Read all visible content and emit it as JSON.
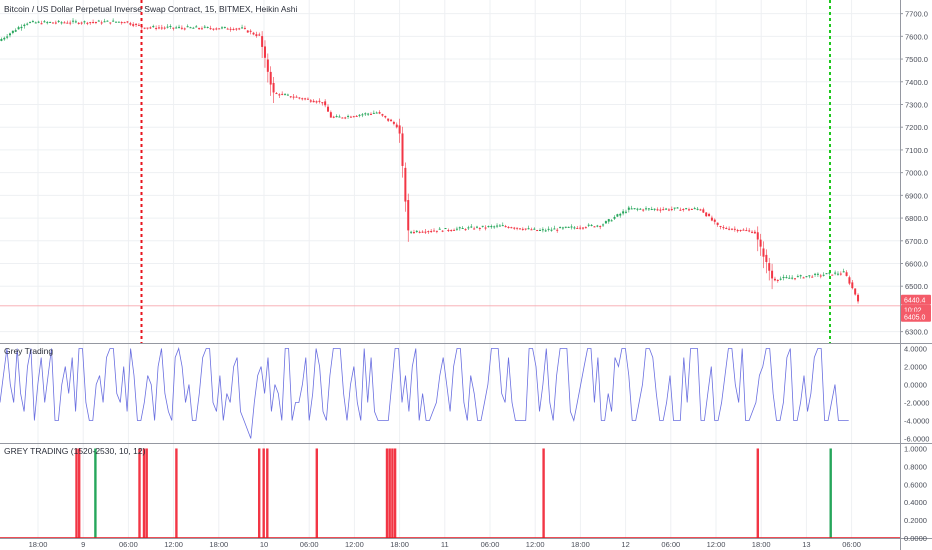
{
  "header": {
    "title": "Bitcoin / US Dollar Perpetual Inverse Swap Contract, 15, BITMEX, Heikin Ashi"
  },
  "colors": {
    "up": "#26a65b",
    "down": "#f23645",
    "oscillator_line": "#6a6fe0",
    "vline_red": "#e8141e",
    "vline_green": "#1ec81e",
    "grid": "#eef0f3",
    "axis_text": "#4a4e59",
    "price_tag": "#f45b69"
  },
  "price_axis": {
    "ticks": [
      "7700.0",
      "7600.0",
      "7500.0",
      "7400.0",
      "7300.0",
      "7200.0",
      "7100.0",
      "7000.0",
      "6900.0",
      "6800.0",
      "6700.0",
      "6600.0",
      "6500.0",
      "6300.0"
    ],
    "tags": [
      "6440.4",
      "10:02",
      "6405.0"
    ]
  },
  "osc_axis": {
    "ticks": [
      "4.0000",
      "2.0000",
      "0.0000",
      "-2.0000",
      "-4.0000",
      "-6.0000"
    ]
  },
  "signal_axis": {
    "ticks": [
      "1.0000",
      "0.8000",
      "0.6000",
      "0.4000",
      "0.2000",
      "0.0000"
    ]
  },
  "time_axis": {
    "labels": [
      "18:00",
      "9",
      "06:00",
      "12:00",
      "18:00",
      "10",
      "06:00",
      "12:00",
      "18:00",
      "11",
      "06:00",
      "12:00",
      "18:00",
      "12",
      "06:00",
      "12:00",
      "18:00",
      "13",
      "06:00"
    ]
  },
  "panels": {
    "oscillator_title": "Grey Trading",
    "signal_title": "GREY TRADING (1520-2530, 10, 12)"
  },
  "chart_data": [
    {
      "type": "candlestick",
      "title": "Bitcoin / US Dollar Perpetual Inverse Swap Contract, 15, BITMEX, Heikin Ashi",
      "ylim": [
        6250,
        7760
      ],
      "grid": true,
      "price_path": [
        [
          0,
          7580
        ],
        [
          0.03,
          7660
        ],
        [
          0.14,
          7665
        ],
        [
          0.16,
          7640
        ],
        [
          0.27,
          7635
        ],
        [
          0.29,
          7600
        ],
        [
          0.305,
          7350
        ],
        [
          0.36,
          7310
        ],
        [
          0.37,
          7240
        ],
        [
          0.42,
          7265
        ],
        [
          0.445,
          7200
        ],
        [
          0.455,
          6740
        ],
        [
          0.5,
          6750
        ],
        [
          0.56,
          6765
        ],
        [
          0.6,
          6745
        ],
        [
          0.67,
          6770
        ],
        [
          0.7,
          6840
        ],
        [
          0.78,
          6840
        ],
        [
          0.8,
          6760
        ],
        [
          0.84,
          6740
        ],
        [
          0.86,
          6530
        ],
        [
          0.94,
          6560
        ],
        [
          0.955,
          6440
        ]
      ],
      "vertical_markers": [
        {
          "position": 0.155,
          "color": "red"
        },
        {
          "position": 0.92,
          "color": "green"
        }
      ],
      "last_price": 6440.4,
      "ask_price": 6405.0
    },
    {
      "type": "line",
      "title": "Grey Trading",
      "ylim": [
        -6.5,
        4.5
      ],
      "values": [
        -2,
        1,
        4,
        0,
        -2,
        4,
        -1,
        -3,
        2,
        4,
        -4,
        0,
        3,
        -2,
        1,
        4,
        -4,
        -4,
        0,
        2,
        -1,
        3,
        -3,
        4,
        4,
        -2,
        -4,
        -4,
        0,
        1,
        -2,
        3,
        4,
        4,
        -1,
        -2,
        2,
        -3,
        4,
        1,
        -4,
        -4,
        -2,
        1,
        0,
        -4,
        2,
        4,
        -1,
        -3,
        -4,
        3,
        4,
        2,
        -2,
        0,
        -4,
        -4,
        -1,
        3,
        4,
        4,
        -2,
        -3,
        1,
        -4,
        -1,
        -2,
        2,
        3,
        -3,
        -4,
        -5,
        -6,
        -2,
        1,
        2,
        -1,
        3,
        -3,
        0,
        -1,
        -4,
        4,
        4,
        -4,
        -2,
        -2,
        0,
        3,
        -4,
        -1,
        4,
        2,
        -3,
        -4,
        1,
        4,
        4,
        4,
        -1,
        -4,
        0,
        2,
        -2,
        -4,
        4,
        -2,
        3,
        -3,
        -4,
        -4,
        -4,
        -4,
        0,
        4,
        4,
        -2,
        1,
        -3,
        2,
        4,
        -4,
        -1,
        -4,
        -4,
        -3,
        -2,
        1,
        3,
        0,
        -3,
        2,
        4,
        4,
        -2,
        -4,
        1,
        -1,
        -4,
        -4,
        -2,
        0,
        4,
        4,
        4,
        -1,
        -2,
        3,
        -2,
        -4,
        -4,
        -4,
        -4,
        4,
        4,
        2,
        -3,
        0,
        4,
        -2,
        -4,
        1,
        4,
        4,
        4,
        -3,
        -4,
        -2,
        0,
        2,
        4,
        4,
        -2,
        3,
        -4,
        -4,
        -1,
        -3,
        3,
        2,
        4,
        4,
        1,
        -4,
        -4,
        -2,
        0,
        4,
        4,
        3,
        -1,
        -4,
        -4,
        -2,
        1,
        -4,
        -4,
        -4,
        3,
        -2,
        4,
        4,
        4,
        -4,
        -4,
        -1,
        2,
        -4,
        -4,
        -2,
        1,
        4,
        4,
        0,
        -2,
        4,
        -4,
        -4,
        -3,
        -2,
        1,
        2,
        4,
        4,
        -1,
        -4,
        -4,
        -2,
        3,
        4,
        -4,
        -4,
        -2,
        1,
        -3,
        -1,
        3,
        4,
        4,
        -4,
        -4,
        -2,
        0,
        -4,
        -4,
        -4,
        -4
      ]
    },
    {
      "type": "bar",
      "title": "GREY TRADING (1520-2530, 10, 12)",
      "ylim": [
        0,
        1.05
      ],
      "signals": [
        {
          "position": 0.085,
          "color": "red",
          "value": 1
        },
        {
          "position": 0.088,
          "color": "red",
          "value": 1
        },
        {
          "position": 0.106,
          "color": "green",
          "value": 1
        },
        {
          "position": 0.155,
          "color": "red",
          "value": 1
        },
        {
          "position": 0.16,
          "color": "red",
          "value": 1
        },
        {
          "position": 0.163,
          "color": "red",
          "value": 1
        },
        {
          "position": 0.196,
          "color": "red",
          "value": 1
        },
        {
          "position": 0.288,
          "color": "red",
          "value": 1
        },
        {
          "position": 0.293,
          "color": "red",
          "value": 1
        },
        {
          "position": 0.297,
          "color": "red",
          "value": 1
        },
        {
          "position": 0.352,
          "color": "red",
          "value": 1
        },
        {
          "position": 0.43,
          "color": "red",
          "value": 1
        },
        {
          "position": 0.433,
          "color": "red",
          "value": 1
        },
        {
          "position": 0.436,
          "color": "red",
          "value": 1
        },
        {
          "position": 0.439,
          "color": "red",
          "value": 1
        },
        {
          "position": 0.604,
          "color": "red",
          "value": 1
        },
        {
          "position": 0.842,
          "color": "red",
          "value": 1
        },
        {
          "position": 0.923,
          "color": "green",
          "value": 1
        }
      ]
    }
  ]
}
